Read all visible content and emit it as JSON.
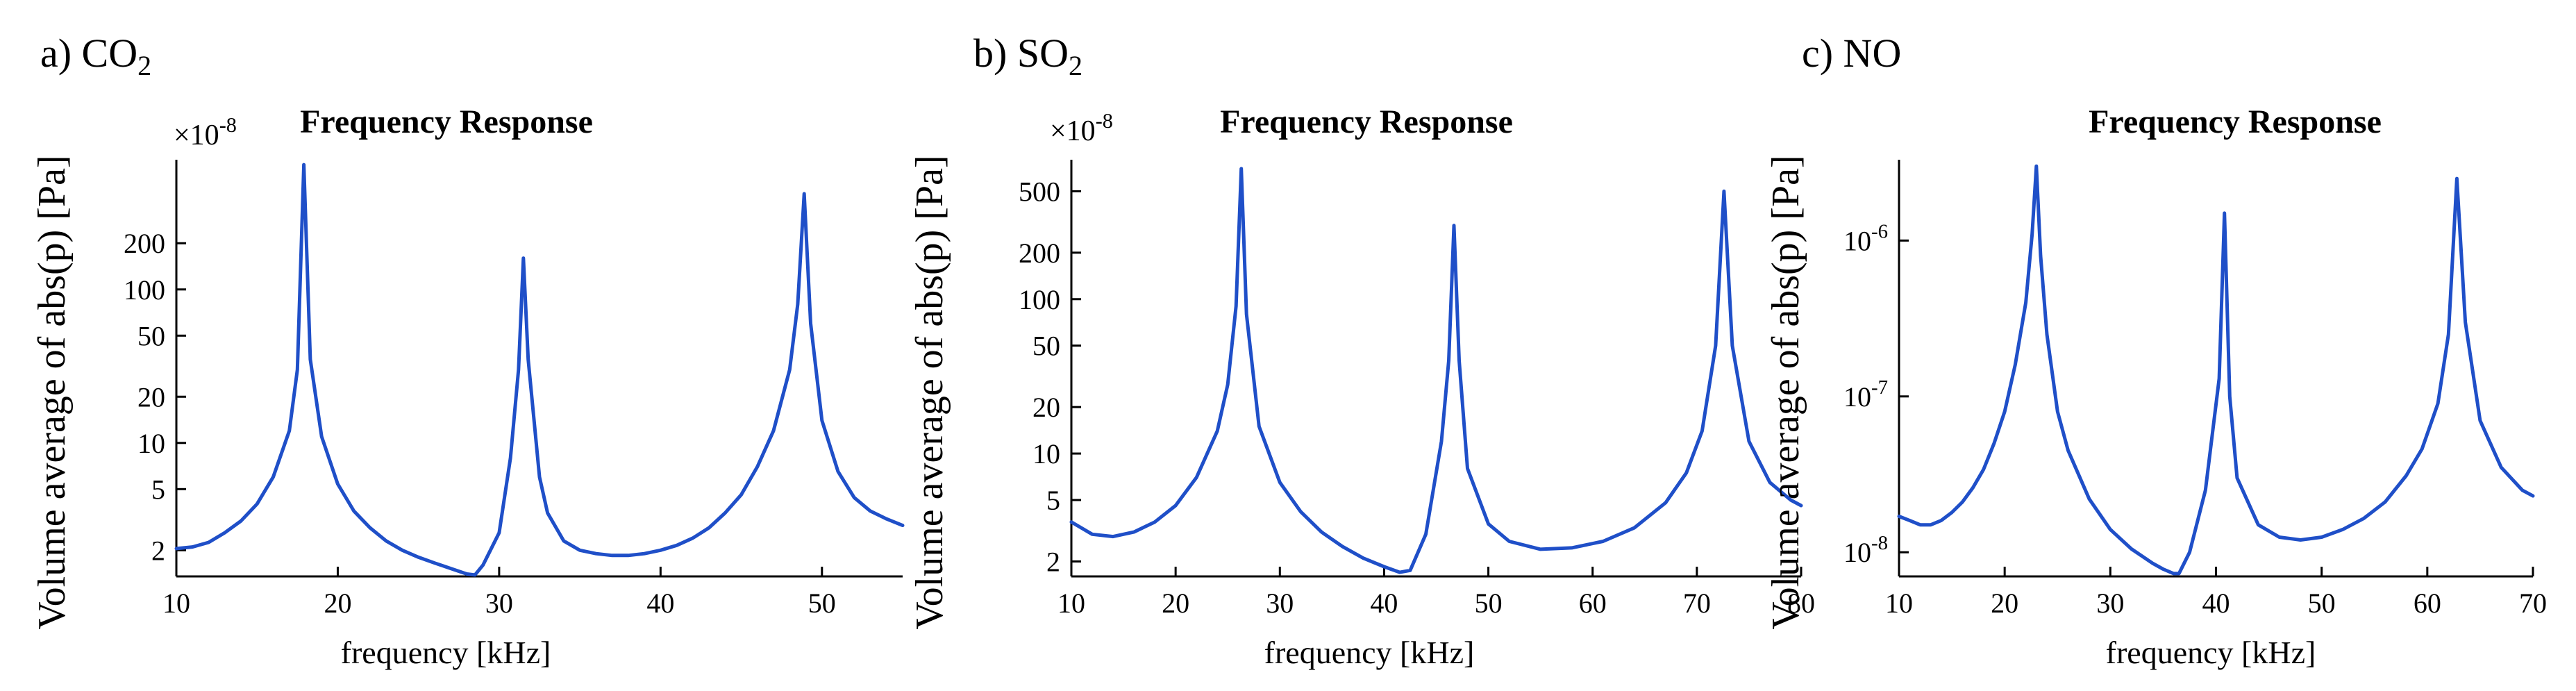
{
  "chart_data": [
    {
      "type": "line",
      "panel_label": "a) CO",
      "panel_label_sub": "2",
      "title": "Frequency Response",
      "xlabel": "frequency  [kHz]",
      "ylabel": "Volume average of abs(p) [Pa]",
      "y_scale": "log",
      "y_multiplier": "×10-8",
      "xlim": [
        10,
        55
      ],
      "ylim": [
        1.35,
        700
      ],
      "x_ticks": [
        10,
        20,
        30,
        40,
        50
      ],
      "x_tick_labels": [
        "10",
        "20",
        "30",
        "40",
        "50"
      ],
      "y_ticks": [
        2,
        5,
        10,
        20,
        50,
        100,
        200
      ],
      "y_tick_labels": [
        "2",
        "5",
        "10",
        "20",
        "50",
        "100",
        "200"
      ],
      "resonances": [
        {
          "freq": 17.9,
          "amplitude": 650
        },
        {
          "freq": 31.5,
          "amplitude": 160
        },
        {
          "freq": 48.9,
          "amplitude": 420
        }
      ],
      "series": [
        {
          "name": "Volume average of abs(p)",
          "color": "#1f4fc8",
          "x": [
            10,
            11,
            12,
            13,
            14,
            15,
            16,
            17,
            17.5,
            17.9,
            18.3,
            19,
            20,
            21,
            22,
            23,
            24,
            25,
            26,
            27,
            28,
            28.5,
            29,
            30,
            30.7,
            31.2,
            31.5,
            31.8,
            32.5,
            33,
            34,
            35,
            36,
            37,
            38,
            39,
            40,
            41,
            42,
            43,
            44,
            45,
            46,
            47,
            48,
            48.5,
            48.9,
            49.3,
            50,
            51,
            52,
            53,
            54,
            55
          ],
          "y": [
            2.05,
            2.1,
            2.25,
            2.6,
            3.1,
            4.0,
            6.0,
            12,
            30,
            650,
            35,
            11,
            5.4,
            3.6,
            2.8,
            2.3,
            2.0,
            1.8,
            1.65,
            1.52,
            1.4,
            1.38,
            1.6,
            2.6,
            8,
            30,
            160,
            35,
            6,
            3.5,
            2.3,
            2.0,
            1.9,
            1.85,
            1.85,
            1.9,
            2.0,
            2.15,
            2.4,
            2.8,
            3.5,
            4.6,
            7,
            12,
            30,
            80,
            420,
            60,
            14,
            6.5,
            4.4,
            3.6,
            3.2,
            2.9
          ]
        }
      ]
    },
    {
      "type": "line",
      "panel_label": "b) SO",
      "panel_label_sub": "2",
      "title": "Frequency Response",
      "xlabel": "frequency  [kHz]",
      "ylabel": "Volume average of abs(p) [Pa]",
      "y_scale": "log",
      "y_multiplier": "×10-8",
      "xlim": [
        10,
        80
      ],
      "ylim": [
        1.6,
        800
      ],
      "x_ticks": [
        10,
        20,
        30,
        40,
        50,
        60,
        70,
        80
      ],
      "x_tick_labels": [
        "10",
        "20",
        "30",
        "40",
        "50",
        "60",
        "70",
        "80"
      ],
      "y_ticks": [
        2,
        5,
        10,
        20,
        50,
        100,
        200,
        500
      ],
      "y_tick_labels": [
        "2",
        "5",
        "10",
        "20",
        "50",
        "100",
        "200",
        "500"
      ],
      "resonances": [
        {
          "freq": 26.3,
          "amplitude": 700
        },
        {
          "freq": 46.7,
          "amplitude": 300
        },
        {
          "freq": 72.6,
          "amplitude": 500
        }
      ],
      "series": [
        {
          "name": "Volume average of abs(p)",
          "color": "#1f4fc8",
          "x": [
            10,
            12,
            14,
            16,
            18,
            20,
            22,
            24,
            25,
            25.8,
            26.3,
            26.8,
            28,
            30,
            32,
            34,
            36,
            38,
            40,
            41.5,
            42.5,
            44,
            45.5,
            46.2,
            46.7,
            47.2,
            48,
            50,
            52,
            55,
            58,
            61,
            64,
            67,
            69,
            70.5,
            71.8,
            72.6,
            73.4,
            75,
            77,
            79,
            80
          ],
          "y": [
            3.6,
            3.0,
            2.9,
            3.1,
            3.6,
            4.6,
            7,
            14,
            28,
            90,
            700,
            80,
            15,
            6.5,
            4.2,
            3.1,
            2.5,
            2.1,
            1.85,
            1.7,
            1.75,
            3.0,
            12,
            40,
            300,
            40,
            8,
            3.5,
            2.7,
            2.4,
            2.45,
            2.7,
            3.3,
            4.8,
            7.5,
            14,
            50,
            500,
            50,
            12,
            6.5,
            5.0,
            4.6
          ]
        }
      ]
    },
    {
      "type": "line",
      "panel_label": "c) NO",
      "panel_label_sub": "",
      "title": "Frequency Response",
      "xlabel": "frequency  [kHz]",
      "ylabel": "Volume average of abs(p) [Pa]",
      "y_scale": "log",
      "y_multiplier": "",
      "xlim": [
        10,
        70
      ],
      "ylim": [
        7e-09,
        3.3e-06
      ],
      "x_ticks": [
        10,
        20,
        30,
        40,
        50,
        60,
        70
      ],
      "x_tick_labels": [
        "10",
        "20",
        "30",
        "40",
        "50",
        "60",
        "70"
      ],
      "y_ticks": [
        1e-08,
        1e-07,
        1e-06
      ],
      "y_tick_labels": [
        "10-8",
        "10-7",
        "10-6"
      ],
      "resonances": [
        {
          "freq": 23.0,
          "amplitude": 3e-06
        },
        {
          "freq": 40.8,
          "amplitude": 1.5e-06
        },
        {
          "freq": 62.8,
          "amplitude": 2.5e-06
        }
      ],
      "series": [
        {
          "name": "Volume average of abs(p)",
          "color": "#1f4fc8",
          "x": [
            10,
            11,
            12,
            13,
            14,
            15,
            16,
            17,
            18,
            19,
            20,
            21,
            22,
            22.6,
            23.0,
            23.4,
            24,
            25,
            26,
            28,
            30,
            32,
            34,
            35,
            36,
            36.5,
            37.5,
            39,
            40.3,
            40.8,
            41.3,
            42,
            44,
            46,
            48,
            50,
            52,
            54,
            56,
            58,
            59.5,
            61,
            62,
            62.8,
            63.6,
            65,
            67,
            69,
            70
          ],
          "y": [
            1.7e-08,
            1.6e-08,
            1.5e-08,
            1.5e-08,
            1.6e-08,
            1.8e-08,
            2.1e-08,
            2.6e-08,
            3.4e-08,
            5e-08,
            8e-08,
            1.6e-07,
            4e-07,
            1.1e-06,
            3e-06,
            8e-07,
            2.5e-07,
            8e-08,
            4.5e-08,
            2.2e-08,
            1.4e-08,
            1.05e-08,
            8.5e-09,
            7.8e-09,
            7.3e-09,
            7.3e-09,
            1e-08,
            2.5e-08,
            1.3e-07,
            1.5e-06,
            1e-07,
            3e-08,
            1.5e-08,
            1.25e-08,
            1.2e-08,
            1.25e-08,
            1.4e-08,
            1.65e-08,
            2.1e-08,
            3.1e-08,
            4.6e-08,
            9e-08,
            2.5e-07,
            2.5e-06,
            3e-07,
            7e-08,
            3.5e-08,
            2.5e-08,
            2.3e-08
          ]
        }
      ]
    }
  ]
}
